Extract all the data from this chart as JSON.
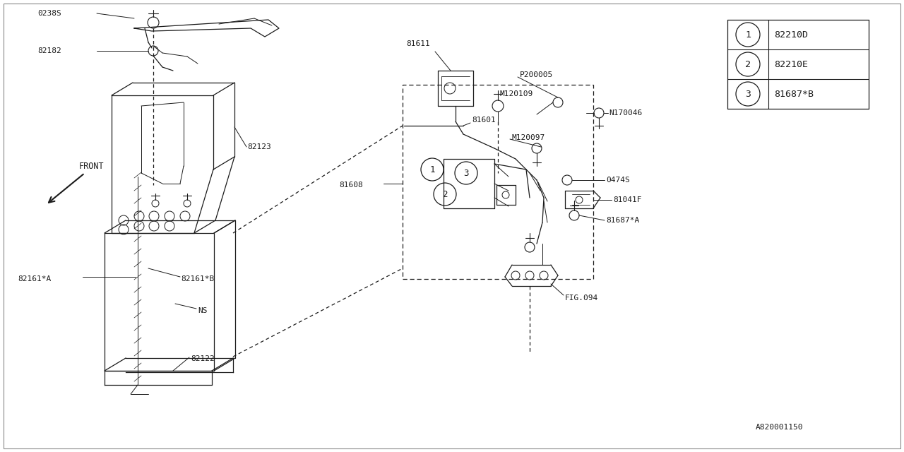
{
  "bg_color": "#ffffff",
  "line_color": "#1a1a1a",
  "border_color": "#cccccc",
  "legend_items": [
    {
      "num": "1",
      "code": "82210D"
    },
    {
      "num": "2",
      "code": "82210E"
    },
    {
      "num": "3",
      "code": "81687*B"
    }
  ],
  "figsize": [
    12.8,
    6.4
  ],
  "dpi": 100,
  "watermark": "A820001150"
}
